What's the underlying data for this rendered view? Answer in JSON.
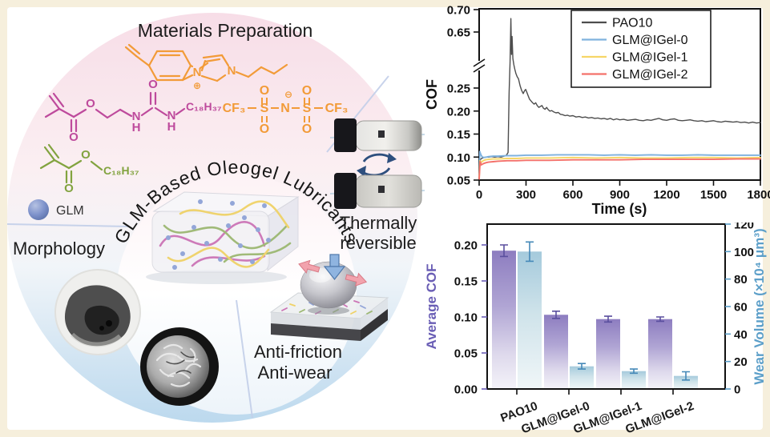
{
  "page": {
    "frame_color": "#f6efdc",
    "panel_color": "#ffffff"
  },
  "diagram": {
    "title": "Materials Preparation",
    "center_arc_text": "GLM-Based Oleogel  Lubricants",
    "glm_legend": "GLM",
    "morphology_label": "Morphology",
    "thermal_label_line1": "Thermally",
    "thermal_label_line2": "reversible",
    "tribo_label_line1": "Anti-friction",
    "tribo_label_line2": "Anti-wear",
    "colors": {
      "imidazolium": "#f29b38",
      "tfsi": "#f29b38",
      "urea_methacrylate": "#be4a9c",
      "stearyl_methacrylate": "#82a33f",
      "glm_sphere": "#6b7fc0",
      "circle_top": "#f7dde7",
      "circle_bottom": "#bcd9ee",
      "divider": "#c3cfe9"
    },
    "molecules": {
      "imidazolium": {
        "n_left": "N",
        "n_right": "N",
        "charge": "⊕"
      },
      "tfsi": {
        "cf3_left": "CF₃",
        "s_left": "S",
        "n_center": "N",
        "s_right": "S",
        "cf3_right": "CF₃",
        "o_top_left": "O",
        "o_bottom_left": "O",
        "o_top_right": "O",
        "o_bottom_right": "O",
        "charge": "⊖"
      },
      "urea_methacrylate": {
        "o_carbonyl": "O",
        "o_ester": "O",
        "n1": "N",
        "h1": "H",
        "o_urea": "O",
        "n2": "N",
        "h2": "H",
        "alkyl_chain": "C₁₈H₃₇"
      },
      "stearyl_methacrylate": {
        "o_carbonyl": "O",
        "o_ester": "O",
        "alkyl_chain": "C₁₈H₃₇"
      }
    }
  },
  "chart_data": [
    {
      "type": "line",
      "title": "",
      "xlabel": "Time (s)",
      "ylabel": "COF",
      "x_range": [
        0,
        1800
      ],
      "x_ticks": [
        0,
        300,
        600,
        900,
        1200,
        1500,
        1800
      ],
      "y_tick_values": [
        0.05,
        0.1,
        0.15,
        0.2,
        0.25,
        0.65,
        0.7
      ],
      "y_tick_labels": [
        "0.05",
        "0.10",
        "0.15",
        "0.20",
        "0.25",
        "0.65",
        "0.70"
      ],
      "y_axis_break": {
        "between": [
          0.27,
          0.6
        ]
      },
      "legend_position": "top-right",
      "grid": false,
      "series": [
        {
          "name": "PAO10",
          "color": "#4d4d4d",
          "width": 1.4,
          "points": [
            [
              0,
              0.062
            ],
            [
              8,
              0.095
            ],
            [
              20,
              0.098
            ],
            [
              40,
              0.1
            ],
            [
              60,
              0.1
            ],
            [
              80,
              0.101
            ],
            [
              100,
              0.1
            ],
            [
              120,
              0.101
            ],
            [
              140,
              0.1
            ],
            [
              160,
              0.102
            ],
            [
              175,
              0.104
            ],
            [
              185,
              0.11
            ],
            [
              192,
              0.24
            ],
            [
              198,
              0.5
            ],
            [
              203,
              0.68
            ],
            [
              207,
              0.6
            ],
            [
              211,
              0.64
            ],
            [
              216,
              0.545
            ],
            [
              222,
              0.46
            ],
            [
              228,
              0.4
            ],
            [
              235,
              0.345
            ],
            [
              243,
              0.3
            ],
            [
              252,
              0.27
            ],
            [
              262,
              0.255
            ],
            [
              272,
              0.245
            ],
            [
              282,
              0.238
            ],
            [
              290,
              0.244
            ],
            [
              298,
              0.247
            ],
            [
              306,
              0.24
            ],
            [
              314,
              0.233
            ],
            [
              322,
              0.226
            ],
            [
              332,
              0.222
            ],
            [
              342,
              0.218
            ],
            [
              352,
              0.215
            ],
            [
              362,
              0.218
            ],
            [
              372,
              0.212
            ],
            [
              382,
              0.208
            ],
            [
              392,
              0.21
            ],
            [
              402,
              0.212
            ],
            [
              412,
              0.206
            ],
            [
              422,
              0.204
            ],
            [
              432,
              0.208
            ],
            [
              442,
              0.203
            ],
            [
              452,
              0.2
            ],
            [
              465,
              0.201
            ],
            [
              478,
              0.198
            ],
            [
              492,
              0.196
            ],
            [
              506,
              0.197
            ],
            [
              520,
              0.193
            ],
            [
              535,
              0.192
            ],
            [
              550,
              0.19
            ],
            [
              565,
              0.191
            ],
            [
              580,
              0.189
            ],
            [
              600,
              0.19
            ],
            [
              620,
              0.187
            ],
            [
              640,
              0.188
            ],
            [
              660,
              0.186
            ],
            [
              680,
              0.187
            ],
            [
              700,
              0.185
            ],
            [
              720,
              0.186
            ],
            [
              740,
              0.184
            ],
            [
              760,
              0.185
            ],
            [
              780,
              0.183
            ],
            [
              800,
              0.184
            ],
            [
              820,
              0.182
            ],
            [
              840,
              0.184
            ],
            [
              860,
              0.181
            ],
            [
              880,
              0.183
            ],
            [
              900,
              0.181
            ],
            [
              925,
              0.182
            ],
            [
              950,
              0.18
            ],
            [
              975,
              0.181
            ],
            [
              1000,
              0.182
            ],
            [
              1025,
              0.18
            ],
            [
              1050,
              0.179
            ],
            [
              1075,
              0.181
            ],
            [
              1100,
              0.18
            ],
            [
              1125,
              0.182
            ],
            [
              1150,
              0.184
            ],
            [
              1175,
              0.181
            ],
            [
              1200,
              0.18
            ],
            [
              1225,
              0.182
            ],
            [
              1250,
              0.183
            ],
            [
              1275,
              0.18
            ],
            [
              1300,
              0.179
            ],
            [
              1325,
              0.18
            ],
            [
              1350,
              0.181
            ],
            [
              1375,
              0.179
            ],
            [
              1400,
              0.178
            ],
            [
              1425,
              0.179
            ],
            [
              1450,
              0.177
            ],
            [
              1475,
              0.178
            ],
            [
              1500,
              0.179
            ],
            [
              1525,
              0.177
            ],
            [
              1550,
              0.176
            ],
            [
              1575,
              0.178
            ],
            [
              1600,
              0.177
            ],
            [
              1625,
              0.176
            ],
            [
              1650,
              0.177
            ],
            [
              1675,
              0.175
            ],
            [
              1700,
              0.176
            ],
            [
              1725,
              0.174
            ],
            [
              1750,
              0.176
            ],
            [
              1775,
              0.174
            ],
            [
              1800,
              0.175
            ]
          ]
        },
        {
          "name": "GLM@IGel-0",
          "color": "#7fb2de",
          "width": 1.9,
          "points": [
            [
              0,
              0.058
            ],
            [
              4,
              0.112
            ],
            [
              10,
              0.106
            ],
            [
              18,
              0.101
            ],
            [
              30,
              0.099
            ],
            [
              45,
              0.1
            ],
            [
              60,
              0.101
            ],
            [
              90,
              0.102
            ],
            [
              120,
              0.102
            ],
            [
              180,
              0.103
            ],
            [
              240,
              0.103
            ],
            [
              300,
              0.104
            ],
            [
              400,
              0.104
            ],
            [
              500,
              0.105
            ],
            [
              600,
              0.105
            ],
            [
              700,
              0.105
            ],
            [
              800,
              0.104
            ],
            [
              900,
              0.105
            ],
            [
              1000,
              0.104
            ],
            [
              1100,
              0.105
            ],
            [
              1200,
              0.104
            ],
            [
              1300,
              0.104
            ],
            [
              1400,
              0.105
            ],
            [
              1500,
              0.104
            ],
            [
              1600,
              0.104
            ],
            [
              1700,
              0.104
            ],
            [
              1800,
              0.104
            ]
          ]
        },
        {
          "name": "GLM@IGel-1",
          "color": "#f6d667",
          "width": 1.9,
          "points": [
            [
              0,
              0.055
            ],
            [
              5,
              0.092
            ],
            [
              12,
              0.088
            ],
            [
              25,
              0.092
            ],
            [
              40,
              0.094
            ],
            [
              60,
              0.095
            ],
            [
              90,
              0.096
            ],
            [
              120,
              0.096
            ],
            [
              180,
              0.097
            ],
            [
              240,
              0.097
            ],
            [
              300,
              0.098
            ],
            [
              450,
              0.098
            ],
            [
              600,
              0.099
            ],
            [
              750,
              0.098
            ],
            [
              900,
              0.099
            ],
            [
              1050,
              0.098
            ],
            [
              1200,
              0.098
            ],
            [
              1350,
              0.099
            ],
            [
              1500,
              0.099
            ],
            [
              1650,
              0.098
            ],
            [
              1800,
              0.099
            ]
          ]
        },
        {
          "name": "GLM@IGel-2",
          "color": "#f4716a",
          "width": 1.9,
          "points": [
            [
              0,
              0.052
            ],
            [
              6,
              0.09
            ],
            [
              14,
              0.083
            ],
            [
              28,
              0.086
            ],
            [
              45,
              0.088
            ],
            [
              60,
              0.089
            ],
            [
              90,
              0.09
            ],
            [
              120,
              0.091
            ],
            [
              180,
              0.092
            ],
            [
              240,
              0.092
            ],
            [
              300,
              0.093
            ],
            [
              450,
              0.093
            ],
            [
              600,
              0.094
            ],
            [
              750,
              0.094
            ],
            [
              900,
              0.094
            ],
            [
              1050,
              0.095
            ],
            [
              1200,
              0.095
            ],
            [
              1350,
              0.095
            ],
            [
              1500,
              0.095
            ],
            [
              1650,
              0.096
            ],
            [
              1800,
              0.096
            ]
          ]
        }
      ]
    },
    {
      "type": "bar",
      "categories": [
        "PAO10",
        "GLM@IGel-0",
        "GLM@IGel-1",
        "GLM@IGel-2"
      ],
      "left_axis": {
        "label": "Average COF",
        "color": "#6a5eb5",
        "tick_values": [
          0,
          0.05,
          0.1,
          0.15,
          0.2
        ],
        "tick_labels": [
          "0.00",
          "0.05",
          "0.10",
          "0.15",
          "0.20"
        ],
        "max": 0.229
      },
      "right_axis": {
        "label": "Wear Volume (×10⁴ μm³)",
        "color": "#5c9fc9",
        "tick_values": [
          0,
          20,
          40,
          60,
          80,
          100,
          120
        ],
        "max": 120
      },
      "series": [
        {
          "name": "Average COF",
          "axis": "left",
          "bar_color_top": "#8d7dc0",
          "error_color": "#5a4f9e",
          "values": [
            0.192,
            0.103,
            0.097,
            0.097
          ],
          "errors": [
            0.008,
            0.005,
            0.004,
            0.003
          ]
        },
        {
          "name": "Wear Volume (×10⁴ μm³)",
          "axis": "right",
          "bar_color_top": "#a5cadc",
          "error_color": "#4689b8",
          "values": [
            100,
            16.5,
            13,
            9.5
          ],
          "errors": [
            7,
            2,
            1.5,
            3
          ]
        }
      ]
    }
  ]
}
